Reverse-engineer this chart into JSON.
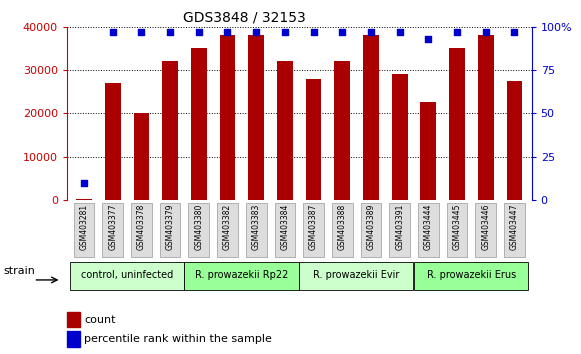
{
  "title": "GDS3848 / 32153",
  "samples": [
    "GSM403281",
    "GSM403377",
    "GSM403378",
    "GSM403379",
    "GSM403380",
    "GSM403382",
    "GSM403383",
    "GSM403384",
    "GSM403387",
    "GSM403388",
    "GSM403389",
    "GSM403391",
    "GSM403444",
    "GSM403445",
    "GSM403446",
    "GSM403447"
  ],
  "counts": [
    200,
    27000,
    20000,
    32000,
    35000,
    38000,
    38000,
    32000,
    28000,
    32000,
    38000,
    29000,
    22500,
    35000,
    38000,
    27500
  ],
  "percentiles": [
    10,
    97,
    97,
    97,
    97,
    97,
    97,
    97,
    97,
    97,
    97,
    97,
    93,
    97,
    97,
    97
  ],
  "groups": [
    {
      "label": "control, uninfected",
      "start": 0,
      "end": 4,
      "color": "#ccffcc"
    },
    {
      "label": "R. prowazekii Rp22",
      "start": 4,
      "end": 8,
      "color": "#99ff99"
    },
    {
      "label": "R. prowazekii Evir",
      "start": 8,
      "end": 12,
      "color": "#ccffcc"
    },
    {
      "label": "R. prowazekii Erus",
      "start": 12,
      "end": 16,
      "color": "#99ff99"
    }
  ],
  "bar_color": "#aa0000",
  "dot_color": "#0000cc",
  "left_axis_color": "#cc0000",
  "right_axis_color": "#0000cc",
  "ylim_left": [
    0,
    40000
  ],
  "ylim_right": [
    0,
    100
  ],
  "yticks_left": [
    0,
    10000,
    20000,
    30000,
    40000
  ],
  "yticks_right": [
    0,
    25,
    50,
    75,
    100
  ],
  "strain_label": "strain",
  "legend_count_label": "count",
  "legend_pct_label": "percentile rank within the sample"
}
